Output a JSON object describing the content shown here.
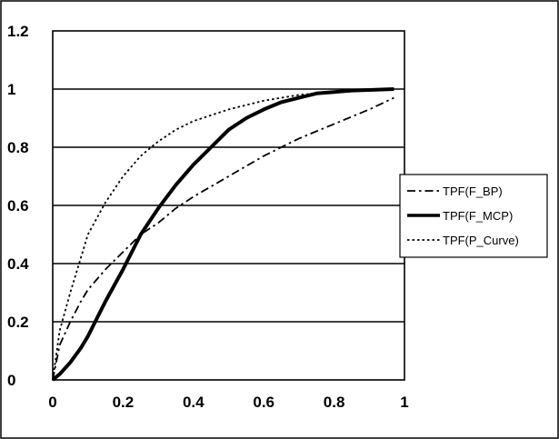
{
  "chart_data": {
    "type": "line",
    "title": "",
    "xlabel": "",
    "ylabel": "",
    "xlim": [
      0,
      1
    ],
    "ylim": [
      0,
      1.2
    ],
    "xticks": [
      0,
      0.2,
      0.4,
      0.6,
      0.8,
      1
    ],
    "yticks": [
      0,
      0.2,
      0.4,
      0.6,
      0.8,
      1,
      1.2
    ],
    "xtick_labels": [
      "0",
      "0.2",
      "0.4",
      "0.6",
      "0.8",
      "1"
    ],
    "ytick_labels": [
      "0",
      "0.2",
      "0.4",
      "0.6",
      "0.8",
      "1",
      "1.2"
    ],
    "grid": "horizontal",
    "legend_position": "right",
    "series": [
      {
        "name": "TPF(F_BP)",
        "style": "dash-dot",
        "color": "#000000",
        "x": [
          0,
          0.02,
          0.05,
          0.08,
          0.1,
          0.15,
          0.2,
          0.25,
          0.3,
          0.35,
          0.4,
          0.5,
          0.6,
          0.7,
          0.8,
          0.9,
          0.97
        ],
        "y": [
          0,
          0.12,
          0.2,
          0.27,
          0.31,
          0.38,
          0.44,
          0.5,
          0.54,
          0.59,
          0.63,
          0.7,
          0.77,
          0.83,
          0.88,
          0.93,
          0.97
        ]
      },
      {
        "name": "TPF(F_MCP)",
        "style": "solid-thick",
        "color": "#000000",
        "x": [
          0,
          0.02,
          0.05,
          0.08,
          0.1,
          0.15,
          0.2,
          0.25,
          0.3,
          0.35,
          0.4,
          0.45,
          0.5,
          0.55,
          0.6,
          0.65,
          0.7,
          0.75,
          0.8,
          0.85,
          0.9,
          0.97
        ],
        "y": [
          0,
          0.02,
          0.06,
          0.11,
          0.15,
          0.27,
          0.38,
          0.5,
          0.59,
          0.67,
          0.74,
          0.8,
          0.86,
          0.9,
          0.93,
          0.955,
          0.97,
          0.985,
          0.99,
          0.995,
          0.997,
          1.0
        ]
      },
      {
        "name": "TPF(P_Curve)",
        "style": "dotted",
        "color": "#000000",
        "x": [
          0,
          0.02,
          0.05,
          0.08,
          0.1,
          0.15,
          0.2,
          0.25,
          0.3,
          0.35,
          0.4,
          0.5,
          0.6,
          0.7,
          0.8,
          0.9,
          0.97
        ],
        "y": [
          0,
          0.17,
          0.3,
          0.42,
          0.5,
          0.61,
          0.7,
          0.77,
          0.82,
          0.86,
          0.89,
          0.93,
          0.96,
          0.98,
          0.99,
          0.995,
          1.0
        ]
      }
    ]
  }
}
